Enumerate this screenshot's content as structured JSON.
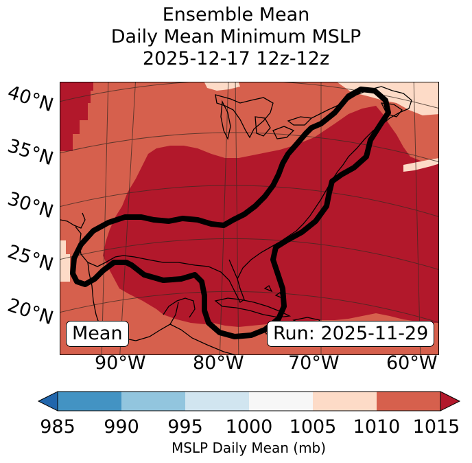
{
  "title": {
    "line1": "Ensemble Mean",
    "line2": "Daily Mean Minimum MSLP",
    "line3": "2025-12-17 12z-12z"
  },
  "map": {
    "lat_labels": [
      "40°N",
      "35°N",
      "30°N",
      "25°N",
      "20°N"
    ],
    "lon_labels": [
      "90°W",
      "80°W",
      "70°W",
      "60°W"
    ],
    "left_box": "Mean",
    "right_box": "Run: 2025-11-29",
    "fill_colors": {
      "dark_red": "#b2182b",
      "mid_red": "#d6604d",
      "light_peach": "#fddbc7"
    }
  },
  "colorbar": {
    "ticks": [
      "985",
      "990",
      "995",
      "1000",
      "1005",
      "1010",
      "1015"
    ],
    "segment_colors": [
      "#4393c3",
      "#92c5de",
      "#d1e5f0",
      "#f7f7f7",
      "#fddbc7",
      "#d6604d"
    ],
    "under_color": "#2166ac",
    "over_color": "#b2182b",
    "label": "MSLP Daily Mean (mb)"
  }
}
